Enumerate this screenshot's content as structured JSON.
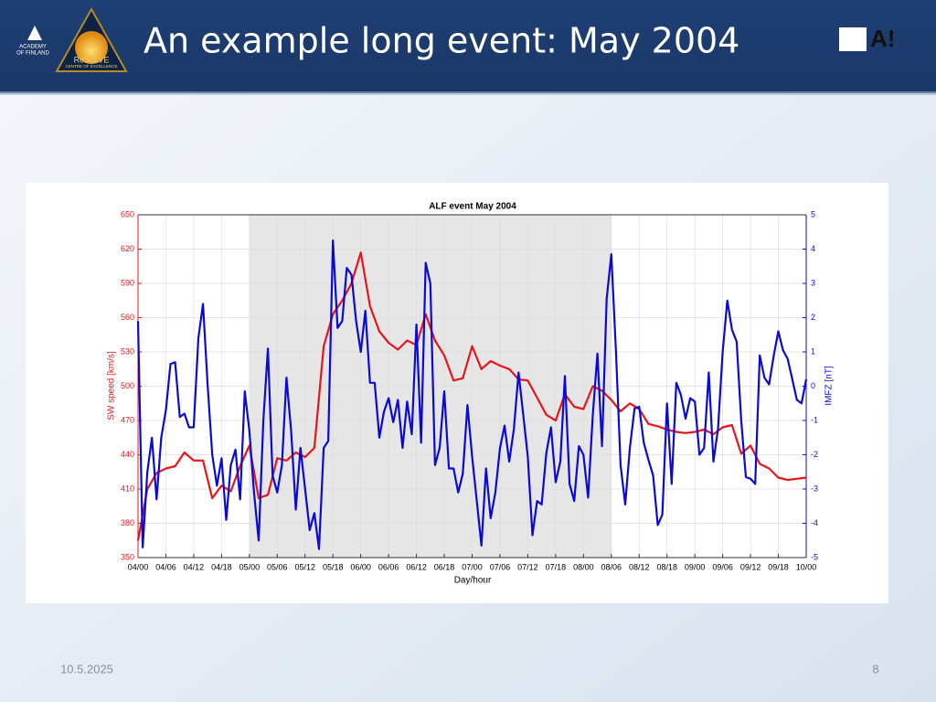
{
  "header": {
    "title": "An example long event: May 2004",
    "left_logo_1": [
      "ACADEMY",
      "OF FINLAND"
    ],
    "left_logo_2": [
      "ReSoLVE",
      "CENTRE OF EXCELLENCE"
    ],
    "right_logo": "A!"
  },
  "footer": {
    "date": "10.5.2025",
    "page": "8"
  },
  "chart_data": {
    "type": "line",
    "title": "ALF event May 2004",
    "x_label": "Day/hour",
    "y_label": "SW speed [km/s]",
    "y2_label": "IMFZ [nT]",
    "xlim": [
      0,
      144
    ],
    "xticks": [
      {
        "value": 0,
        "label": "04/00"
      },
      {
        "value": 6,
        "label": "04/06"
      },
      {
        "value": 12,
        "label": "04/12"
      },
      {
        "value": 18,
        "label": "04/18"
      },
      {
        "value": 24,
        "label": "05/00"
      },
      {
        "value": 30,
        "label": "05/06"
      },
      {
        "value": 36,
        "label": "05/12"
      },
      {
        "value": 42,
        "label": "05/18"
      },
      {
        "value": 48,
        "label": "06/00"
      },
      {
        "value": 54,
        "label": "06/06"
      },
      {
        "value": 60,
        "label": "06/12"
      },
      {
        "value": 66,
        "label": "06/18"
      },
      {
        "value": 72,
        "label": "07/00"
      },
      {
        "value": 78,
        "label": "07/06"
      },
      {
        "value": 84,
        "label": "07/12"
      },
      {
        "value": 90,
        "label": "07/18"
      },
      {
        "value": 96,
        "label": "08/00"
      },
      {
        "value": 102,
        "label": "08/06"
      },
      {
        "value": 108,
        "label": "08/12"
      },
      {
        "value": 114,
        "label": "08/18"
      },
      {
        "value": 120,
        "label": "09/00"
      },
      {
        "value": 126,
        "label": "09/06"
      },
      {
        "value": 132,
        "label": "09/12"
      },
      {
        "value": 138,
        "label": "09/18"
      },
      {
        "value": 144,
        "label": "10/00"
      }
    ],
    "ylim": [
      350,
      650
    ],
    "yticks": [
      350,
      380,
      410,
      440,
      470,
      500,
      530,
      560,
      590,
      620,
      650
    ],
    "y2lim": [
      -5,
      5
    ],
    "y2ticks": [
      -5,
      -4,
      -3,
      -2,
      -1,
      0,
      1,
      2,
      3,
      4,
      5
    ],
    "grid": true,
    "highlight": [
      24,
      102
    ],
    "highlight_color": "#e6e6e6",
    "series": [
      {
        "name": "SW speed",
        "color": "#e8141a",
        "axis": "y",
        "x": [
          0,
          2,
          4,
          6,
          8,
          10,
          12,
          14,
          16,
          18,
          20,
          22,
          24,
          26,
          28,
          30,
          32,
          34,
          36,
          38,
          40,
          42,
          44,
          46,
          48,
          50,
          52,
          54,
          56,
          58,
          60,
          62,
          64,
          66,
          68,
          70,
          72,
          74,
          76,
          78,
          80,
          82,
          84,
          86,
          88,
          90,
          92,
          94,
          96,
          98,
          100,
          102,
          104,
          106,
          108,
          110,
          112,
          114,
          116,
          118,
          120,
          122,
          124,
          126,
          128,
          130,
          132,
          134,
          136,
          138,
          140,
          142,
          144
        ],
        "values": [
          365,
          410,
          424,
          428,
          430,
          442,
          435,
          435,
          402,
          413,
          408,
          430,
          448,
          402,
          405,
          437,
          435,
          442,
          438,
          446,
          535,
          563,
          575,
          590,
          617,
          570,
          548,
          538,
          532,
          540,
          536,
          563,
          540,
          527,
          505,
          507,
          535,
          515,
          522,
          518,
          515,
          506,
          505,
          490,
          475,
          470,
          493,
          482,
          480,
          500,
          496,
          488,
          478,
          485,
          480,
          467,
          465,
          462,
          460,
          459,
          460,
          462,
          458,
          464,
          466,
          441,
          448,
          432,
          428,
          420,
          418,
          419,
          420
        ]
      },
      {
        "name": "IMFZ",
        "color": "#0a0ad8",
        "axis": "y2",
        "x": [
          0,
          1,
          2,
          3,
          4,
          5,
          6,
          7,
          8,
          9,
          10,
          11,
          12,
          13,
          14,
          15,
          16,
          17,
          18,
          19,
          20,
          21,
          22,
          23,
          24,
          25,
          26,
          27,
          28,
          29,
          30,
          31,
          32,
          33,
          34,
          35,
          36,
          37,
          38,
          39,
          40,
          41,
          42,
          43,
          44,
          45,
          46,
          47,
          48,
          49,
          50,
          51,
          52,
          53,
          54,
          55,
          56,
          57,
          58,
          59,
          60,
          61,
          62,
          63,
          64,
          65,
          66,
          67,
          68,
          69,
          70,
          71,
          72,
          73,
          74,
          75,
          76,
          77,
          78,
          79,
          80,
          81,
          82,
          83,
          84,
          85,
          86,
          87,
          88,
          89,
          90,
          91,
          92,
          93,
          94,
          95,
          96,
          97,
          98,
          99,
          100,
          101,
          102,
          103,
          104,
          105,
          106,
          107,
          108,
          109,
          110,
          111,
          112,
          113,
          114,
          115,
          116,
          117,
          118,
          119,
          120,
          121,
          122,
          123,
          124,
          125,
          126,
          127,
          128,
          129,
          130,
          131,
          132,
          133,
          134,
          135,
          136,
          137,
          138,
          139,
          140,
          141,
          142,
          143,
          144
        ],
        "values": [
          1.9,
          -4.7,
          -2.5,
          -1.5,
          -3.3,
          -1.5,
          -0.7,
          0.65,
          0.7,
          -0.9,
          -0.8,
          -1.2,
          -1.2,
          1.4,
          2.4,
          0.05,
          -2.0,
          -2.9,
          -2.1,
          -3.9,
          -2.3,
          -1.85,
          -3.3,
          -0.15,
          -1.3,
          -3.1,
          -4.5,
          -1.0,
          1.1,
          -2.6,
          -3.1,
          -2.3,
          0.25,
          -1.3,
          -3.6,
          -1.8,
          -3.0,
          -4.2,
          -3.7,
          -4.75,
          -1.8,
          -1.6,
          4.25,
          1.7,
          1.9,
          3.45,
          3.25,
          1.9,
          1.0,
          2.2,
          0.1,
          0.1,
          -1.5,
          -0.75,
          -0.35,
          -1.05,
          -0.4,
          -1.8,
          -0.45,
          -1.4,
          1.8,
          -1.65,
          3.6,
          3.0,
          -2.3,
          -1.8,
          -0.15,
          -2.4,
          -2.4,
          -3.1,
          -2.55,
          -0.55,
          -2.05,
          -3.35,
          -4.65,
          -2.4,
          -3.85,
          -3.1,
          -1.8,
          -1.15,
          -2.2,
          -1.25,
          0.4,
          -0.8,
          -2.05,
          -4.35,
          -3.35,
          -3.45,
          -1.95,
          -1.2,
          -2.8,
          -2.2,
          0.3,
          -2.85,
          -3.35,
          -1.75,
          -2.0,
          -3.25,
          -0.85,
          0.95,
          -1.75,
          2.55,
          3.85,
          1.0,
          -2.3,
          -3.45,
          -1.8,
          -0.65,
          -0.6,
          -1.65,
          -2.15,
          -2.6,
          -4.05,
          -3.75,
          -0.5,
          -2.85,
          0.1,
          -0.25,
          -0.95,
          -0.35,
          -0.45,
          -2.0,
          -1.8,
          0.4,
          -2.2,
          -1.25,
          1.0,
          2.5,
          1.65,
          1.3,
          -1.0,
          -2.65,
          -2.7,
          -2.85,
          0.9,
          0.25,
          0.05,
          0.9,
          1.6,
          1.05,
          0.8,
          0.2,
          -0.4,
          -0.5,
          0.2
        ]
      }
    ]
  }
}
